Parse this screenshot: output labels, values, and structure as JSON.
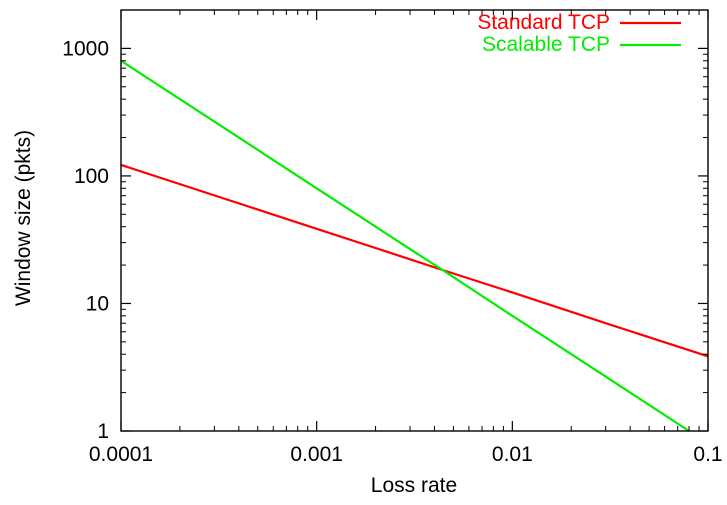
{
  "chart_data": {
    "type": "line",
    "title": "",
    "xlabel": "Loss rate",
    "ylabel": "Window size (pkts)",
    "x_scale": "log",
    "y_scale": "log",
    "xlim": [
      0.0001,
      0.1
    ],
    "ylim": [
      1,
      2000
    ],
    "x_ticks": [
      {
        "value": 0.0001,
        "label": "0.0001"
      },
      {
        "value": 0.001,
        "label": "0.001"
      },
      {
        "value": 0.01,
        "label": "0.01"
      },
      {
        "value": 0.1,
        "label": "0.1"
      }
    ],
    "y_ticks": [
      {
        "value": 1,
        "label": "1"
      },
      {
        "value": 10,
        "label": "10"
      },
      {
        "value": 100,
        "label": "100"
      },
      {
        "value": 1000,
        "label": "1000"
      }
    ],
    "grid": false,
    "legend_position": "top-right",
    "series": [
      {
        "name": "Standard TCP",
        "color": "#ff0000",
        "x": [
          0.0001,
          0.0003,
          0.001,
          0.003,
          0.0044,
          0.01,
          0.03,
          0.1
        ],
        "y": [
          122,
          70.4,
          38.5,
          22.2,
          18.3,
          12.2,
          7.0,
          3.85
        ]
      },
      {
        "name": "Scalable TCP",
        "color": "#00ee00",
        "x": [
          0.0001,
          0.0003,
          0.001,
          0.003,
          0.0044,
          0.01,
          0.03,
          0.08
        ],
        "y": [
          800,
          267,
          80,
          26.7,
          18.3,
          8.0,
          2.67,
          1.0
        ]
      }
    ]
  }
}
